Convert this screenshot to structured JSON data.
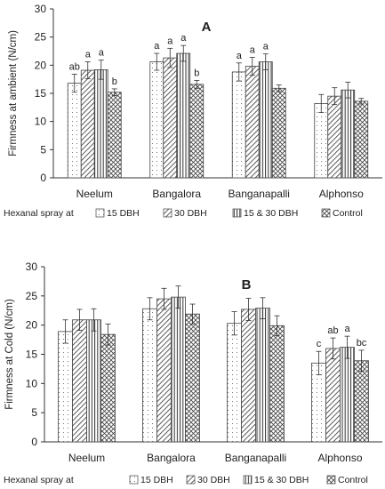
{
  "legend_prefix": "Hexanal spray at",
  "chart_data": [
    {
      "type": "bar",
      "panel_label": "A",
      "ylabel": "Firmness at ambient (N/cm)",
      "ylim": [
        0,
        30
      ],
      "yticks": [
        0,
        5,
        10,
        15,
        20,
        25,
        30
      ],
      "categories": [
        "Neelum",
        "Bangalora",
        "Banganapalli",
        "Alphonso"
      ],
      "legend_placement": "bottom",
      "series": [
        {
          "name": "15 DBH",
          "pattern": "dots",
          "values": [
            16.8,
            20.6,
            18.8,
            13.2
          ],
          "errors": [
            1.6,
            1.5,
            1.6,
            1.6
          ],
          "labels": [
            "ab",
            "a",
            "a",
            ""
          ]
        },
        {
          "name": "30 DBH",
          "pattern": "diagonal",
          "values": [
            19.1,
            21.3,
            19.8,
            14.5
          ],
          "errors": [
            1.5,
            1.7,
            1.6,
            1.5
          ],
          "labels": [
            "a",
            "a",
            "a",
            ""
          ]
        },
        {
          "name": "15 & 30 DBH",
          "pattern": "vertical",
          "values": [
            19.2,
            22.1,
            20.6,
            15.6
          ],
          "errors": [
            1.7,
            1.4,
            1.4,
            1.4
          ],
          "labels": [
            "a",
            "a",
            "a",
            ""
          ]
        },
        {
          "name": "Control",
          "pattern": "crosshatch",
          "values": [
            15.2,
            16.6,
            15.9,
            13.6
          ],
          "errors": [
            0.6,
            0.7,
            0.6,
            0.5
          ],
          "labels": [
            "b",
            "b",
            "",
            ""
          ]
        }
      ]
    },
    {
      "type": "bar",
      "panel_label": "B",
      "ylabel": "Firmness at Cold (N/cm)",
      "ylim": [
        0,
        30
      ],
      "yticks": [
        0,
        5,
        10,
        15,
        20,
        25,
        30
      ],
      "categories": [
        "Neelum",
        "Bangalora",
        "Banganapalli",
        "Alphonso"
      ],
      "legend_placement": "bottom",
      "series": [
        {
          "name": "15 DBH",
          "pattern": "dots",
          "values": [
            18.9,
            22.8,
            20.3,
            13.5
          ],
          "errors": [
            2.0,
            1.9,
            2.0,
            2.0
          ],
          "labels": [
            "",
            "",
            "",
            "c"
          ]
        },
        {
          "name": "30 DBH",
          "pattern": "diagonal",
          "values": [
            20.9,
            24.5,
            22.7,
            16.0
          ],
          "errors": [
            1.8,
            1.8,
            1.9,
            1.8
          ],
          "labels": [
            "",
            "",
            "",
            "ab"
          ]
        },
        {
          "name": "15 & 30 DBH",
          "pattern": "vertical",
          "values": [
            20.9,
            24.8,
            22.9,
            16.2
          ],
          "errors": [
            1.9,
            1.9,
            1.8,
            1.9
          ],
          "labels": [
            "",
            "",
            "",
            "a"
          ]
        },
        {
          "name": "Control",
          "pattern": "crosshatch",
          "values": [
            18.4,
            21.9,
            19.9,
            13.9
          ],
          "errors": [
            1.8,
            1.7,
            1.7,
            1.8
          ],
          "labels": [
            "",
            "",
            "",
            "bc"
          ]
        }
      ]
    }
  ]
}
